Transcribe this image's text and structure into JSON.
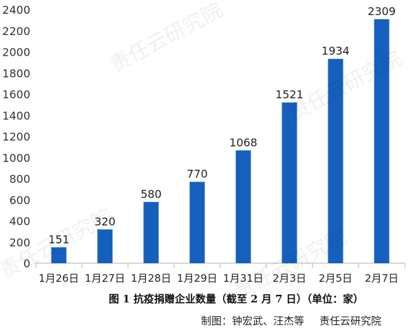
{
  "chart_data": {
    "type": "bar",
    "categories": [
      "1月26日",
      "1月27日",
      "1月28日",
      "1月29日",
      "1月31日",
      "2月3日",
      "2月5日",
      "2月7日"
    ],
    "values": [
      151,
      320,
      580,
      770,
      1068,
      1521,
      1934,
      2309
    ],
    "ylim": [
      0,
      2400
    ],
    "yticks": [
      0,
      200,
      400,
      600,
      800,
      1000,
      1200,
      1400,
      1600,
      1800,
      2000,
      2200,
      2400
    ],
    "grid": false,
    "bar_color": "#1560BD",
    "data_labels": true
  },
  "caption": "图 1  抗疫捐赠企业数量（截至 2 月 7 日）（单位：家）",
  "credit": {
    "author": "制图：钟宏武、汪杰等",
    "org": "责任云研究院"
  },
  "watermark": "责任云研究院"
}
